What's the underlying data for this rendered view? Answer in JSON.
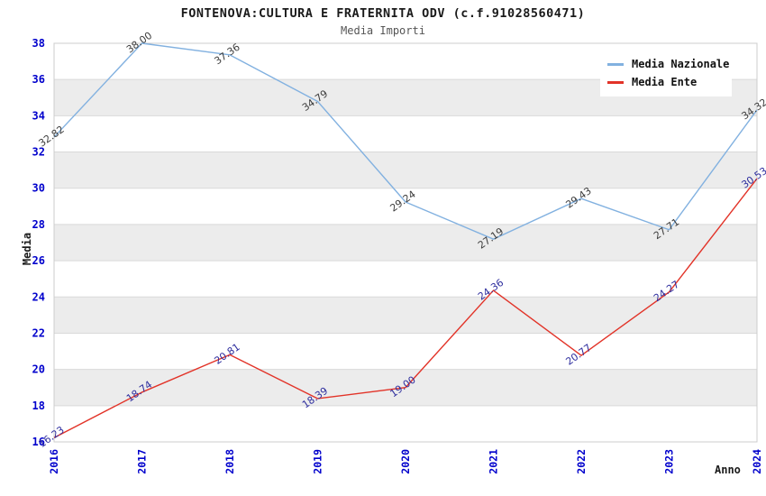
{
  "title": "FONTENOVA:CULTURA E FRATERNITA ODV (c.f.91028560471)",
  "subtitle": "Media Importi",
  "chart_data": {
    "type": "line",
    "x": [
      2016,
      2017,
      2018,
      2019,
      2020,
      2021,
      2022,
      2023,
      2024
    ],
    "series": [
      {
        "name": "Media Nazionale",
        "color": "#82b1e0",
        "label_color": "#3c3c3c",
        "values": [
          32.82,
          38.0,
          37.36,
          34.79,
          29.24,
          27.19,
          29.43,
          27.71,
          34.32
        ]
      },
      {
        "name": "Media Ente",
        "color": "#e23328",
        "label_color": "#2e2e9e",
        "values": [
          16.23,
          18.74,
          20.81,
          18.39,
          19.0,
          24.36,
          20.77,
          24.27,
          30.53
        ]
      }
    ],
    "xlabel": "Anno",
    "ylabel": "Media",
    "ylim": [
      16,
      38
    ],
    "ytick_step": 2,
    "grid": true,
    "legend_position": "top-right",
    "band_colors": [
      "#ffffff",
      "#ececec"
    ],
    "gridline_color": "#d9d9d9",
    "border_color": "#cccccc",
    "tick_label_color": "#0000cc",
    "label_decimals": 2
  }
}
